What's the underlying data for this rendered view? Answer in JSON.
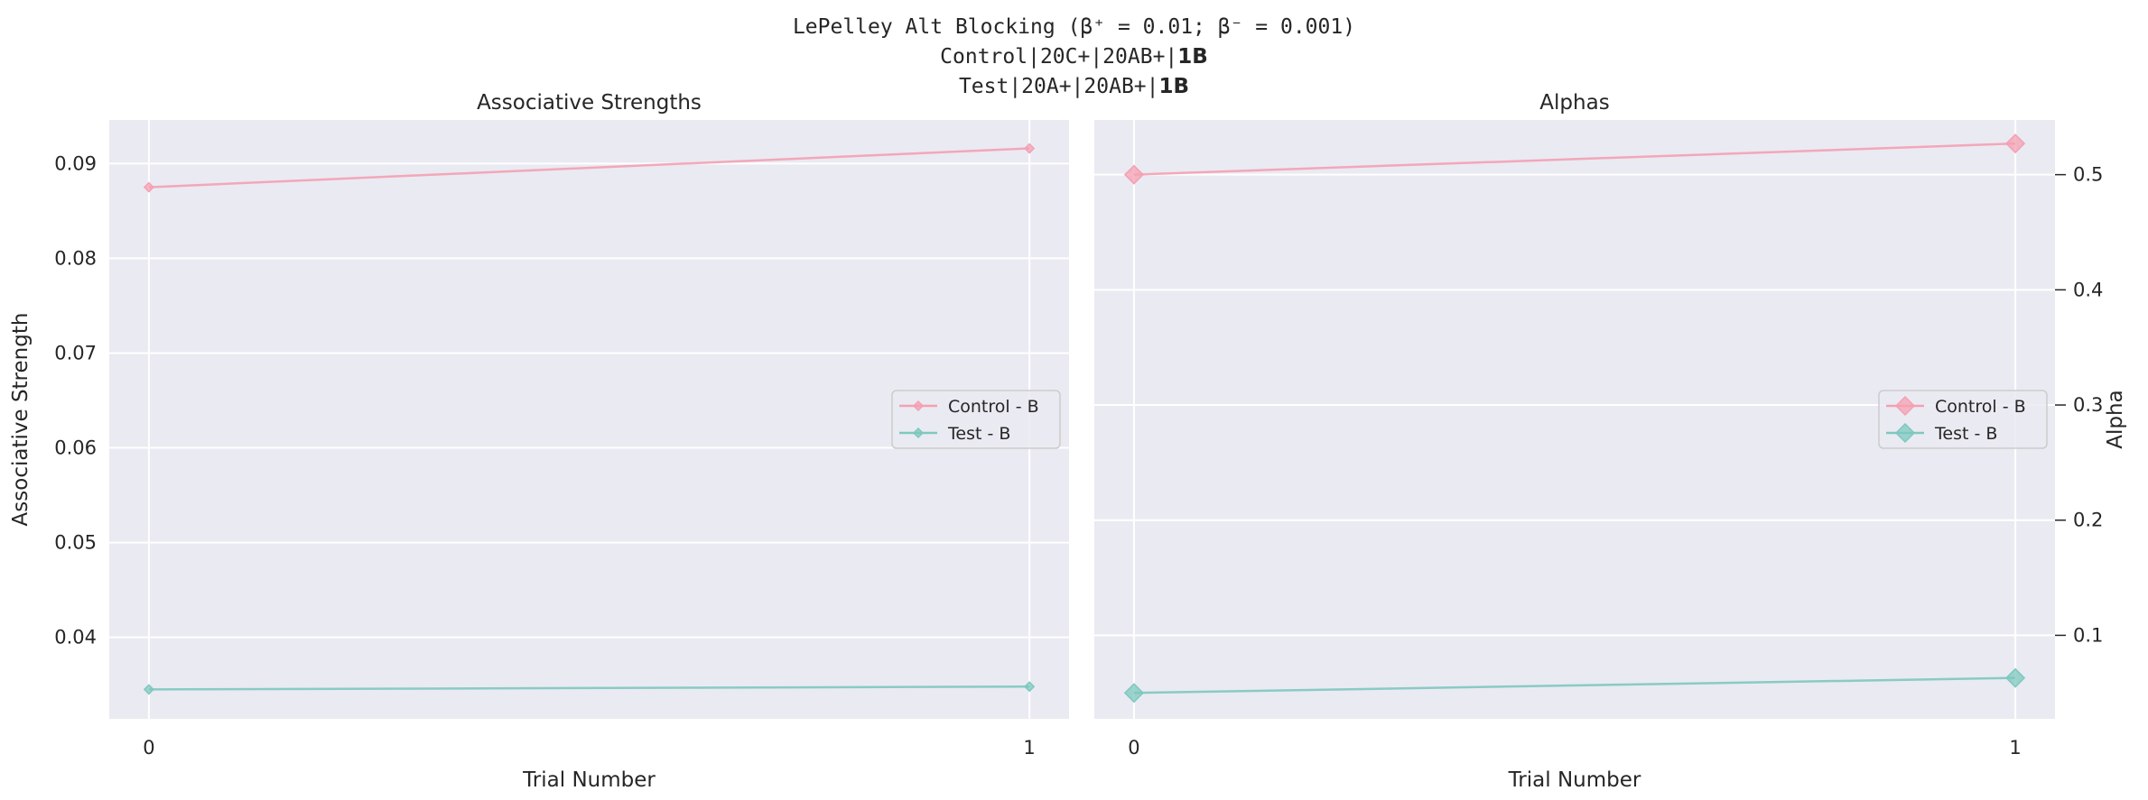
{
  "suptitle": {
    "line1": "LePelley Alt Blocking (β⁺ = 0.01; β⁻ = 0.001)",
    "line2_prefix": "Control|20C+|20AB+|",
    "line2_bold": "1B",
    "line3_prefix": "Test|20A+|20AB+|",
    "line3_bold": "1B"
  },
  "colors": {
    "control": "#f4a0b2",
    "test": "#7ec8bf",
    "plot_bg": "#eaeaf2",
    "grid": "#ffffff"
  },
  "chart_data": [
    {
      "type": "line",
      "title": "Associative Strengths",
      "xlabel": "Trial Number",
      "ylabel": "Associative Strength",
      "x": [
        0,
        1
      ],
      "xticks": [
        "0",
        "1"
      ],
      "yticks": [
        "0.04",
        "0.05",
        "0.06",
        "0.07",
        "0.08",
        "0.09"
      ],
      "yaxis_side": "left",
      "ylim": [
        0.0314,
        0.0946
      ],
      "grid": true,
      "legend": "center-right",
      "series": [
        {
          "name": "Control - B",
          "values": [
            0.0875,
            0.0916
          ]
        },
        {
          "name": "Test - B",
          "values": [
            0.0345,
            0.0348
          ]
        }
      ]
    },
    {
      "type": "line",
      "title": "Alphas",
      "xlabel": "Trial Number",
      "ylabel": "Alpha",
      "x": [
        0,
        1
      ],
      "xticks": [
        "0",
        "1"
      ],
      "yticks": [
        "0.1",
        "0.2",
        "0.3",
        "0.4",
        "0.5"
      ],
      "yaxis_side": "right",
      "ylim": [
        0.0275,
        0.5475
      ],
      "grid": true,
      "legend": "center-right",
      "series": [
        {
          "name": "Control - B",
          "values": [
            0.5,
            0.527
          ]
        },
        {
          "name": "Test - B",
          "values": [
            0.05,
            0.063
          ]
        }
      ]
    }
  ]
}
